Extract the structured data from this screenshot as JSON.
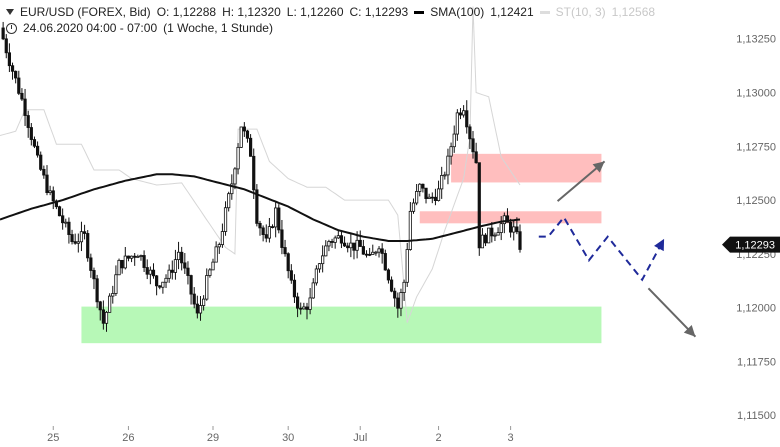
{
  "legend": {
    "symbol": "EUR/USD (FOREX, Bid)",
    "open": "O: 1,12288",
    "high": "H: 1,12320",
    "low": "L: 1,12260",
    "close": "C: 1,12293",
    "sma_label": "SMA(100)",
    "sma_value": "1,12421",
    "st_label": "ST(10, 3)",
    "st_value": "1,12568",
    "timestamp": "24.06.2020 04:00 - 07:00",
    "period": "(1 Woche, 1 Stunde)"
  },
  "colors": {
    "candles": "#111111",
    "sma": "#111111",
    "supertrend": "#d6d6d6",
    "resistance_zone": "#ffb3b3",
    "support_zone": "#9ff59f",
    "forecast_path": "#1f2a9a",
    "arrow": "#666666",
    "price_tag": "#111111"
  },
  "chart_data": {
    "type": "candlestick",
    "x_tick_labels": [
      "25",
      "26",
      "29",
      "30",
      "Jul",
      "2",
      "3"
    ],
    "y_tick_labels": [
      "1,13250",
      "1,13000",
      "1,12750",
      "1,12500",
      "1,12250",
      "1,12000",
      "1,11750",
      "1,11500"
    ],
    "y_ticks": [
      1.1325,
      1.13,
      1.1275,
      1.125,
      1.1225,
      1.12,
      1.1175,
      1.115
    ],
    "ylim": [
      1.1145,
      1.1343
    ],
    "current_price": 1.12293,
    "current_price_label": "1,12293",
    "close_path": [
      [
        0,
        1.133
      ],
      [
        3,
        1.1315
      ],
      [
        8,
        1.1292
      ],
      [
        12,
        1.1268
      ],
      [
        16,
        1.1252
      ],
      [
        20,
        1.124
      ],
      [
        23,
        1.1231
      ],
      [
        27,
        1.1233
      ],
      [
        30,
        1.1212
      ],
      [
        33,
        1.1193
      ],
      [
        35,
        1.1203
      ],
      [
        38,
        1.122
      ],
      [
        44,
        1.1226
      ],
      [
        50,
        1.1211
      ],
      [
        54,
        1.1215
      ],
      [
        57,
        1.1226
      ],
      [
        60,
        1.1212
      ],
      [
        63,
        1.1196
      ],
      [
        66,
        1.1212
      ],
      [
        70,
        1.123
      ],
      [
        74,
        1.1258
      ],
      [
        77,
        1.1285
      ],
      [
        80,
        1.1272
      ],
      [
        82,
        1.1242
      ],
      [
        85,
        1.123
      ],
      [
        88,
        1.1245
      ],
      [
        90,
        1.123
      ],
      [
        93,
        1.121
      ],
      [
        96,
        1.1198
      ],
      [
        99,
        1.1203
      ],
      [
        102,
        1.1222
      ],
      [
        105,
        1.1231
      ],
      [
        109,
        1.1233
      ],
      [
        112,
        1.1229
      ],
      [
        115,
        1.1228
      ],
      [
        118,
        1.1222
      ],
      [
        121,
        1.123
      ],
      [
        124,
        1.1215
      ],
      [
        127,
        1.12
      ],
      [
        129,
        1.1212
      ],
      [
        131,
        1.1245
      ],
      [
        134,
        1.1256
      ],
      [
        137,
        1.125
      ],
      [
        140,
        1.1254
      ],
      [
        143,
        1.1268
      ],
      [
        146,
        1.129
      ],
      [
        148,
        1.1294
      ],
      [
        150,
        1.128
      ],
      [
        152,
        1.1268
      ],
      [
        153,
        1.123
      ],
      [
        155,
        1.1233
      ],
      [
        158,
        1.1236
      ],
      [
        161,
        1.124
      ],
      [
        164,
        1.1236
      ],
      [
        166,
        1.1229
      ]
    ],
    "sma_100": [
      [
        0,
        1.1241
      ],
      [
        10,
        1.1246
      ],
      [
        20,
        1.125
      ],
      [
        30,
        1.1255
      ],
      [
        40,
        1.1259
      ],
      [
        50,
        1.1262
      ],
      [
        55,
        1.1262
      ],
      [
        62,
        1.1261
      ],
      [
        70,
        1.1258
      ],
      [
        78,
        1.1255
      ],
      [
        85,
        1.1251
      ],
      [
        92,
        1.1247
      ],
      [
        100,
        1.1241
      ],
      [
        108,
        1.1236
      ],
      [
        116,
        1.1233
      ],
      [
        124,
        1.1231
      ],
      [
        130,
        1.1231
      ],
      [
        138,
        1.1232
      ],
      [
        146,
        1.1235
      ],
      [
        154,
        1.1238
      ],
      [
        160,
        1.124
      ],
      [
        166,
        1.1241
      ]
    ],
    "supertrend": [
      [
        0,
        1.128
      ],
      [
        5,
        1.1282
      ],
      [
        8,
        1.1292
      ],
      [
        14,
        1.1292
      ],
      [
        18,
        1.1276
      ],
      [
        26,
        1.1276
      ],
      [
        30,
        1.1264
      ],
      [
        38,
        1.1264
      ],
      [
        42,
        1.126
      ],
      [
        50,
        1.1257
      ],
      [
        58,
        1.1258
      ],
      [
        65,
        1.1243
      ],
      [
        72,
        1.1228
      ],
      [
        75,
        1.1225
      ],
      [
        76,
        1.1283
      ],
      [
        82,
        1.1283
      ],
      [
        86,
        1.1268
      ],
      [
        92,
        1.126
      ],
      [
        98,
        1.1256
      ],
      [
        104,
        1.1256
      ],
      [
        110,
        1.125
      ],
      [
        118,
        1.125
      ],
      [
        124,
        1.125
      ],
      [
        127,
        1.1243
      ],
      [
        130,
        1.1193
      ],
      [
        133,
        1.1205
      ],
      [
        138,
        1.1218
      ],
      [
        142,
        1.1236
      ],
      [
        148,
        1.126
      ],
      [
        150,
        1.1279
      ],
      [
        151,
        1.134
      ],
      [
        152,
        1.13
      ],
      [
        156,
        1.1298
      ],
      [
        160,
        1.127
      ],
      [
        166,
        1.1257
      ]
    ],
    "resistance_zones": [
      {
        "x0": 144,
        "x1": 192,
        "y_low": 1.12582,
        "y_high": 1.12715
      },
      {
        "x0": 134,
        "x1": 192,
        "y_low": 1.12392,
        "y_high": 1.12448
      }
    ],
    "support_zone": {
      "x0": 26,
      "x1": 192,
      "y_low": 1.11835,
      "y_high": 1.12005
    },
    "forecast_path": [
      [
        172,
        1.1233
      ],
      [
        175,
        1.1233
      ],
      [
        180,
        1.1242
      ],
      [
        188,
        1.1222
      ],
      [
        194,
        1.1233
      ],
      [
        205,
        1.1213
      ],
      [
        212,
        1.1232
      ]
    ],
    "forecast_arrow_up": {
      "from": [
        178,
        1.12495
      ],
      "to": [
        193,
        1.1268
      ]
    },
    "forecast_arrow_down": {
      "from": [
        207,
        1.1209
      ],
      "to": [
        222,
        1.11865
      ]
    },
    "x_tick_positions": [
      17,
      41,
      68,
      92,
      115,
      140,
      163
    ],
    "xlim": [
      0,
      249
    ]
  }
}
